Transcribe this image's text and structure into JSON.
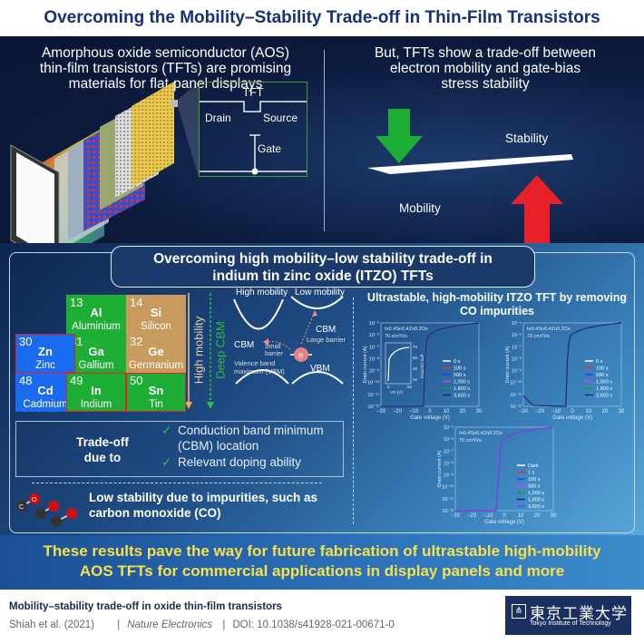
{
  "title": "Overcoming the Mobility–Stability Trade-off in Thin-Film Transistors",
  "top": {
    "left_text": [
      "Amorphous oxide semiconductor (AOS)",
      "thin-film transistors (TFTs) are promising",
      "materials for flat-panel displays"
    ],
    "tft_diagram": {
      "title": "TFT",
      "drain": "Drain",
      "source": "Source",
      "gate": "Gate"
    },
    "right_text": [
      "But, TFTs show a trade-off between",
      "electron mobility and gate-bias",
      "stress stability"
    ],
    "stability_label": "Stability",
    "mobility_label": "Mobility",
    "colors": {
      "down_arrow": "#1fae35",
      "up_arrow": "#e8202a"
    }
  },
  "middle": {
    "header": [
      "Overcoming high mobility–low stability trade-off in",
      "indium tin zinc oxide (ITZO) TFTs"
    ],
    "elements": [
      {
        "number": "13",
        "symbol": "Al",
        "name": "Aluminium",
        "color": "#1fae35"
      },
      {
        "number": "14",
        "symbol": "Si",
        "name": "Silicon",
        "color": "#c99a5e"
      },
      {
        "number": "30",
        "symbol": "Zn",
        "name": "Zinc",
        "color": "#1b6bf0"
      },
      {
        "number": "31",
        "symbol": "Ga",
        "name": "Gallium",
        "color": "#1fae35"
      },
      {
        "number": "32",
        "symbol": "Ge",
        "name": "Germanium",
        "color": "#c99a5e"
      },
      {
        "number": "48",
        "symbol": "Cd",
        "name": "Cadmium",
        "color": "#1b6bf0"
      },
      {
        "number": "49",
        "symbol": "In",
        "name": "Indium",
        "color": "#1fae35"
      },
      {
        "number": "50",
        "symbol": "Sn",
        "name": "Tin",
        "color": "#1fae35"
      }
    ],
    "high_mobility_arrow": "High mobility",
    "deep_cbm_arrow": "Deep CBM",
    "band": {
      "high_mobility": "High mobility",
      "low_mobility": "Low mobility",
      "cbm_left": "CBM",
      "cbm_right": "CBM",
      "small_barrier": [
        "Small",
        "barrier"
      ],
      "large_barrier": "Large barrier",
      "electron": "e",
      "vbm_label": [
        "Valence band",
        "maximum (VBM)"
      ],
      "vbm": "VBM"
    },
    "tradeoff": {
      "label": [
        "Trade-off",
        "due to"
      ],
      "reasons": [
        [
          "Conduction band minimum",
          "(CBM) location"
        ],
        [
          "Relevant doping ability"
        ]
      ]
    },
    "impurity_text": [
      "Low stability due to impurities, such as",
      "carbon monoxide (CO)"
    ],
    "co_atoms": {
      "carbon": "C",
      "oxygen": "O"
    },
    "charts_title": [
      "Ultrastable, high-mobility ITZO TFT by removing",
      "CO impurities"
    ]
  },
  "chart_data": [
    {
      "type": "line",
      "composition": "In0.4Sn0.4Zn0.2Ox",
      "mobility": "70 cm²/Vs",
      "xlabel": "Gate voltage (V)",
      "ylabel": "Drain current (A)",
      "xlim": [
        -30,
        30
      ],
      "ylim": [
        1e-12,
        1e-05
      ],
      "yscale": "log",
      "xticks": [
        "−30",
        "−20",
        "−10",
        "0",
        "10",
        "20",
        "30"
      ],
      "yticks": [
        "10⁻¹²",
        "10⁻¹¹",
        "10⁻¹⁰",
        "10⁻⁹",
        "10⁻⁸",
        "10⁻⁷",
        "10⁻⁶",
        "10⁻⁵"
      ],
      "x": [
        -30,
        -4,
        -3.5,
        -3,
        -2,
        -1,
        0,
        5,
        10,
        20,
        30
      ],
      "y": [
        1e-12,
        1e-12,
        1e-10,
        1e-08,
        3e-07,
        8e-07,
        1.2e-06,
        2.5e-06,
        4e-06,
        7e-06,
        1e-05
      ],
      "series": [
        {
          "name": "0 s",
          "color": "#ffffff"
        },
        {
          "name": "100 s",
          "color": "#e8302a"
        },
        {
          "name": "500 s",
          "color": "#2040ff"
        },
        {
          "name": "1,000 s",
          "color": "#d040f0"
        },
        {
          "name": "1,800 s",
          "color": "#1a9a30"
        },
        {
          "name": "3,600 s",
          "color": "#1a2a80"
        }
      ],
      "inset": {
        "xlabel": "VG (V)",
        "ylabel": "μFE (cm²/Vs)",
        "xticks": [
          "0",
          "50"
        ],
        "yticks": [
          "10",
          "30",
          "50",
          "70"
        ]
      }
    },
    {
      "type": "line",
      "composition": "In0.4Sn0.4Zn0.2Ox",
      "mobility": "70 cm²/Vs",
      "xlabel": "Gate voltage (V)",
      "ylabel": "Drain current (A)",
      "xlim": [
        -30,
        30
      ],
      "ylim": [
        1e-12,
        1e-05
      ],
      "yscale": "log",
      "xticks": [
        "−30",
        "−20",
        "−10",
        "0",
        "10",
        "20",
        "30"
      ],
      "yticks": [
        "10⁻¹²",
        "10⁻¹¹",
        "10⁻¹⁰",
        "10⁻⁹",
        "10⁻⁸",
        "10⁻⁷",
        "10⁻⁶",
        "10⁻⁵"
      ],
      "x": [
        -30,
        -27,
        -24,
        -4,
        -3.5,
        -3,
        -2,
        -1,
        0,
        5,
        10,
        20,
        30
      ],
      "y": [
        8e-12,
        3e-12,
        1.2e-12,
        1e-12,
        1e-10,
        1e-08,
        3e-07,
        8e-07,
        1.2e-06,
        2.5e-06,
        4e-06,
        7e-06,
        1e-05
      ],
      "series": [
        {
          "name": "0 s",
          "color": "#ffffff"
        },
        {
          "name": "100 s",
          "color": "#e8302a"
        },
        {
          "name": "500 s",
          "color": "#2040ff"
        },
        {
          "name": "1,000 s",
          "color": "#d040f0"
        },
        {
          "name": "1,800 s",
          "color": "#1a9a30"
        },
        {
          "name": "3,600 s",
          "color": "#1a2a80"
        }
      ]
    },
    {
      "type": "line",
      "composition": "In0.4Sn0.4Zn0.2Ox",
      "mobility": "70 cm²/Vs",
      "xlabel": "Gate voltage (V)",
      "ylabel": "Drain current (A)",
      "xlim": [
        -30,
        30
      ],
      "ylim": [
        1e-12,
        1e-05
      ],
      "yscale": "log",
      "xticks": [
        "−30",
        "−20",
        "−10",
        "0",
        "10",
        "20",
        "30"
      ],
      "yticks": [
        "10⁻¹²",
        "10⁻¹¹",
        "10⁻¹⁰",
        "10⁻⁹",
        "10⁻⁸",
        "10⁻⁷",
        "10⁻⁶",
        "10⁻⁵"
      ],
      "x": [
        -30,
        -5,
        -4,
        -3,
        -2,
        -1,
        0,
        5,
        10,
        20,
        30
      ],
      "y": [
        1e-12,
        1e-12,
        1e-10,
        1e-08,
        3e-07,
        8e-07,
        1.2e-06,
        2.5e-06,
        4e-06,
        7e-06,
        1e-05
      ],
      "series": [
        {
          "name": "Dark",
          "color": "#ffffff"
        },
        {
          "name": "1 s",
          "color": "#e8302a"
        },
        {
          "name": "100 s",
          "color": "#2040ff"
        },
        {
          "name": "500 s",
          "color": "#d040f0"
        },
        {
          "name": "1,000 s",
          "color": "#1a9a30"
        },
        {
          "name": "1,800 s",
          "color": "#1a2a80"
        },
        {
          "name": "3,600 s",
          "color": "#8a3af0"
        }
      ]
    }
  ],
  "conclusion": [
    "These results pave the way for future fabrication of ultrastable high-mobility",
    "AOS TFTs for commercial applications in display panels and more"
  ],
  "footer": {
    "paper_title": "Mobility–stability trade-off in oxide thin-film transistors",
    "authors": "Shiah et al. (2021)",
    "journal": "Nature Electronics",
    "doi": "DOI: 10.1038/s41928-021-00671-0",
    "logo_jp": "東京工業大学",
    "logo_en": "Tokyo Institute of Technology"
  }
}
